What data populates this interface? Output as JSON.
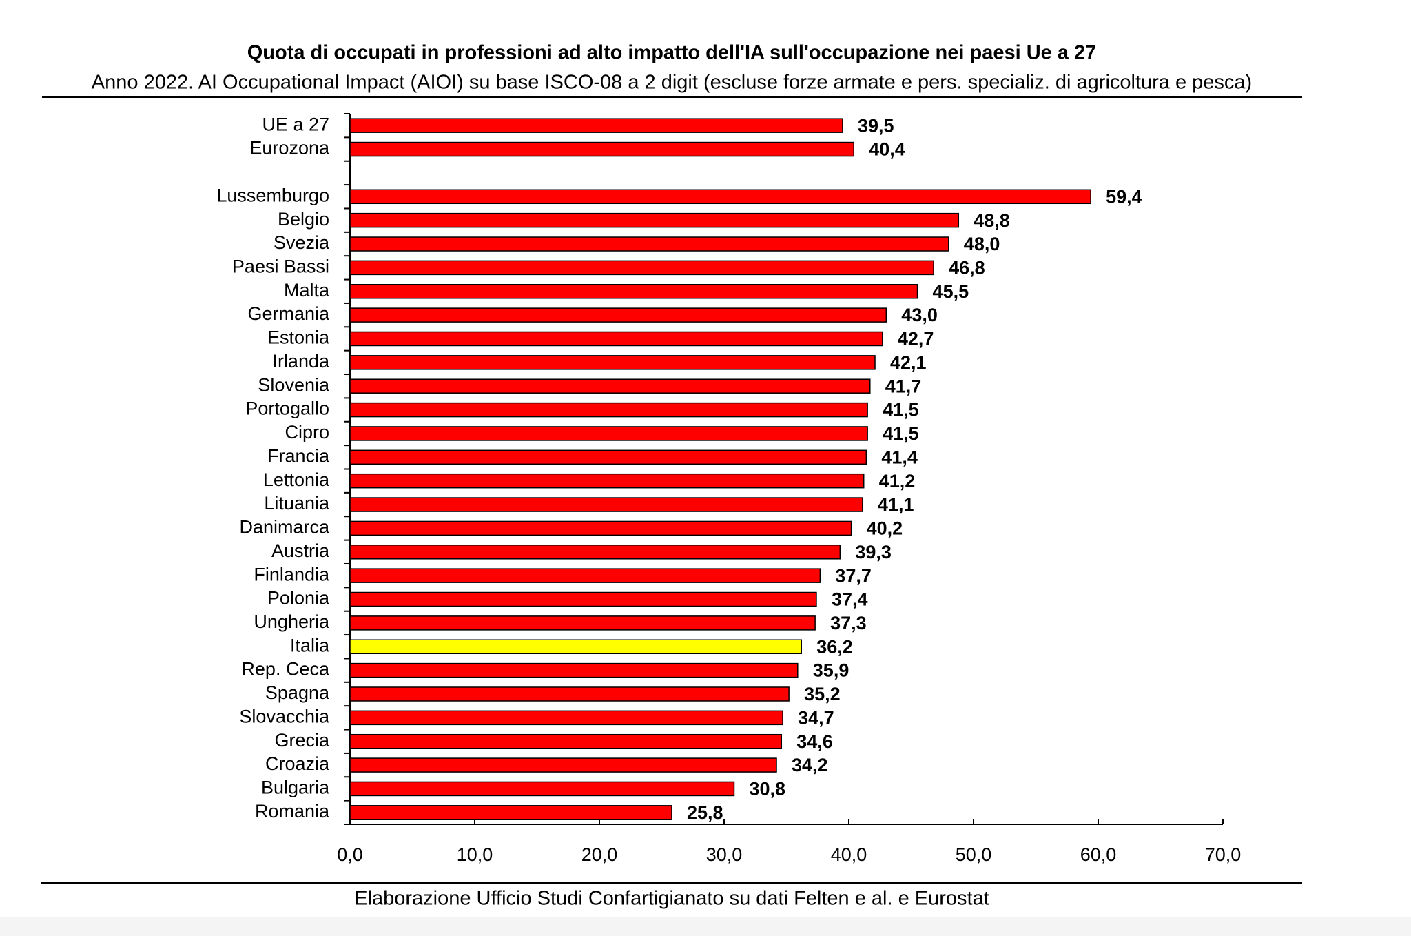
{
  "chart_data": {
    "type": "bar",
    "orientation": "horizontal",
    "title": "Quota di occupati in professioni ad alto impatto dell'IA sull'occupazione nei paesi Ue a 27",
    "subtitle": "Anno 2022. AI Occupational Impact (AIOI) su base ISCO-08 a 2 digit (escluse forze armate e pers. specializ. di agricoltura e pesca)",
    "source": "Elaborazione Ufficio Studi Confartigianato su dati Felten e al. e Eurostat",
    "categories": [
      "UE a 27",
      "Eurozona",
      null,
      "Lussemburgo",
      "Belgio",
      "Svezia",
      "Paesi Bassi",
      "Malta",
      "Germania",
      "Estonia",
      "Irlanda",
      "Slovenia",
      "Portogallo",
      "Cipro",
      "Francia",
      "Lettonia",
      "Lituania",
      "Danimarca",
      "Austria",
      "Finlandia",
      "Polonia",
      "Ungheria",
      "Italia",
      "Rep. Ceca",
      "Spagna",
      "Slovacchia",
      "Grecia",
      "Croazia",
      "Bulgaria",
      "Romania"
    ],
    "values": [
      39.5,
      40.4,
      null,
      59.4,
      48.8,
      48.0,
      46.8,
      45.5,
      43.0,
      42.7,
      42.1,
      41.7,
      41.5,
      41.5,
      41.4,
      41.2,
      41.1,
      40.2,
      39.3,
      37.7,
      37.4,
      37.3,
      36.2,
      35.9,
      35.2,
      34.7,
      34.6,
      34.2,
      30.8,
      25.8
    ],
    "value_labels": [
      "39,5",
      "40,4",
      null,
      "59,4",
      "48,8",
      "48,0",
      "46,8",
      "45,5",
      "43,0",
      "42,7",
      "42,1",
      "41,7",
      "41,5",
      "41,5",
      "41,4",
      "41,2",
      "41,1",
      "40,2",
      "39,3",
      "37,7",
      "37,4",
      "37,3",
      "36,2",
      "35,9",
      "35,2",
      "34,7",
      "34,6",
      "34,2",
      "30,8",
      "25,8"
    ],
    "color": "#ff0000",
    "highlight": {
      "category": "Italia",
      "color": "#ffff00"
    },
    "xlim": [
      0,
      70
    ],
    "xticks": [
      {
        "value": 0,
        "label": "0,0"
      },
      {
        "value": 10,
        "label": "10,0"
      },
      {
        "value": 20,
        "label": "20,0"
      },
      {
        "value": 30,
        "label": "30,0"
      },
      {
        "value": 40,
        "label": "40,0"
      },
      {
        "value": 50,
        "label": "50,0"
      },
      {
        "value": 60,
        "label": "60,0"
      },
      {
        "value": 70,
        "label": "70,0"
      }
    ],
    "grid": false
  }
}
